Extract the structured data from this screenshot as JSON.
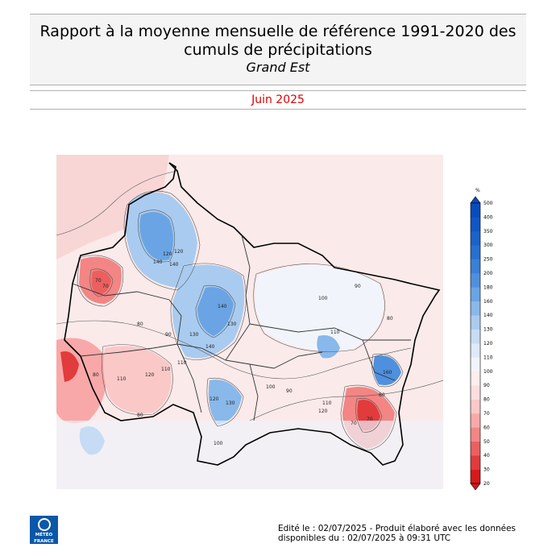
{
  "header": {
    "title_line1": "Rapport à la moyenne mensuelle de référence 1991-2020 des",
    "title_line2": "cumuls de précipitations",
    "region": "Grand Est",
    "period": "Juin 2025"
  },
  "legend": {
    "unit": "%",
    "levels": [
      "20",
      "30",
      "40",
      "50",
      "60",
      "70",
      "80",
      "90",
      "100",
      "110",
      "120",
      "130",
      "140",
      "160",
      "180",
      "200",
      "250",
      "300",
      "350",
      "400",
      "500"
    ],
    "colors": [
      "#d7191c",
      "#e23b3c",
      "#ec5f5f",
      "#f38585",
      "#f8a8a8",
      "#fbc8c8",
      "#fddede",
      "#feeeee",
      "#f1f5fb",
      "#deeaf8",
      "#c6dcf4",
      "#a9cbef",
      "#89b8ea",
      "#6aa4e4",
      "#4e90de",
      "#3880d8",
      "#2670d2",
      "#1a62cc",
      "#1056c6",
      "#084bbf"
    ]
  },
  "map": {
    "contour_labels": [
      "120",
      "140",
      "140",
      "120",
      "70",
      "70",
      "80",
      "90",
      "110",
      "140",
      "130",
      "130",
      "140",
      "110",
      "120",
      "110",
      "80",
      "80",
      "120",
      "130",
      "100",
      "90",
      "100",
      "110",
      "80",
      "70",
      "80",
      "90",
      "110",
      "100",
      "70",
      "120",
      "160"
    ]
  },
  "footer": {
    "line1": "Edité le : 02/07/2025 - Produit élaboré avec les données",
    "line2": "disponibles du : 02/07/2025 à 09:31 UTC",
    "logo_line1": "MÉTÉO",
    "logo_line2": "FRANCE"
  }
}
